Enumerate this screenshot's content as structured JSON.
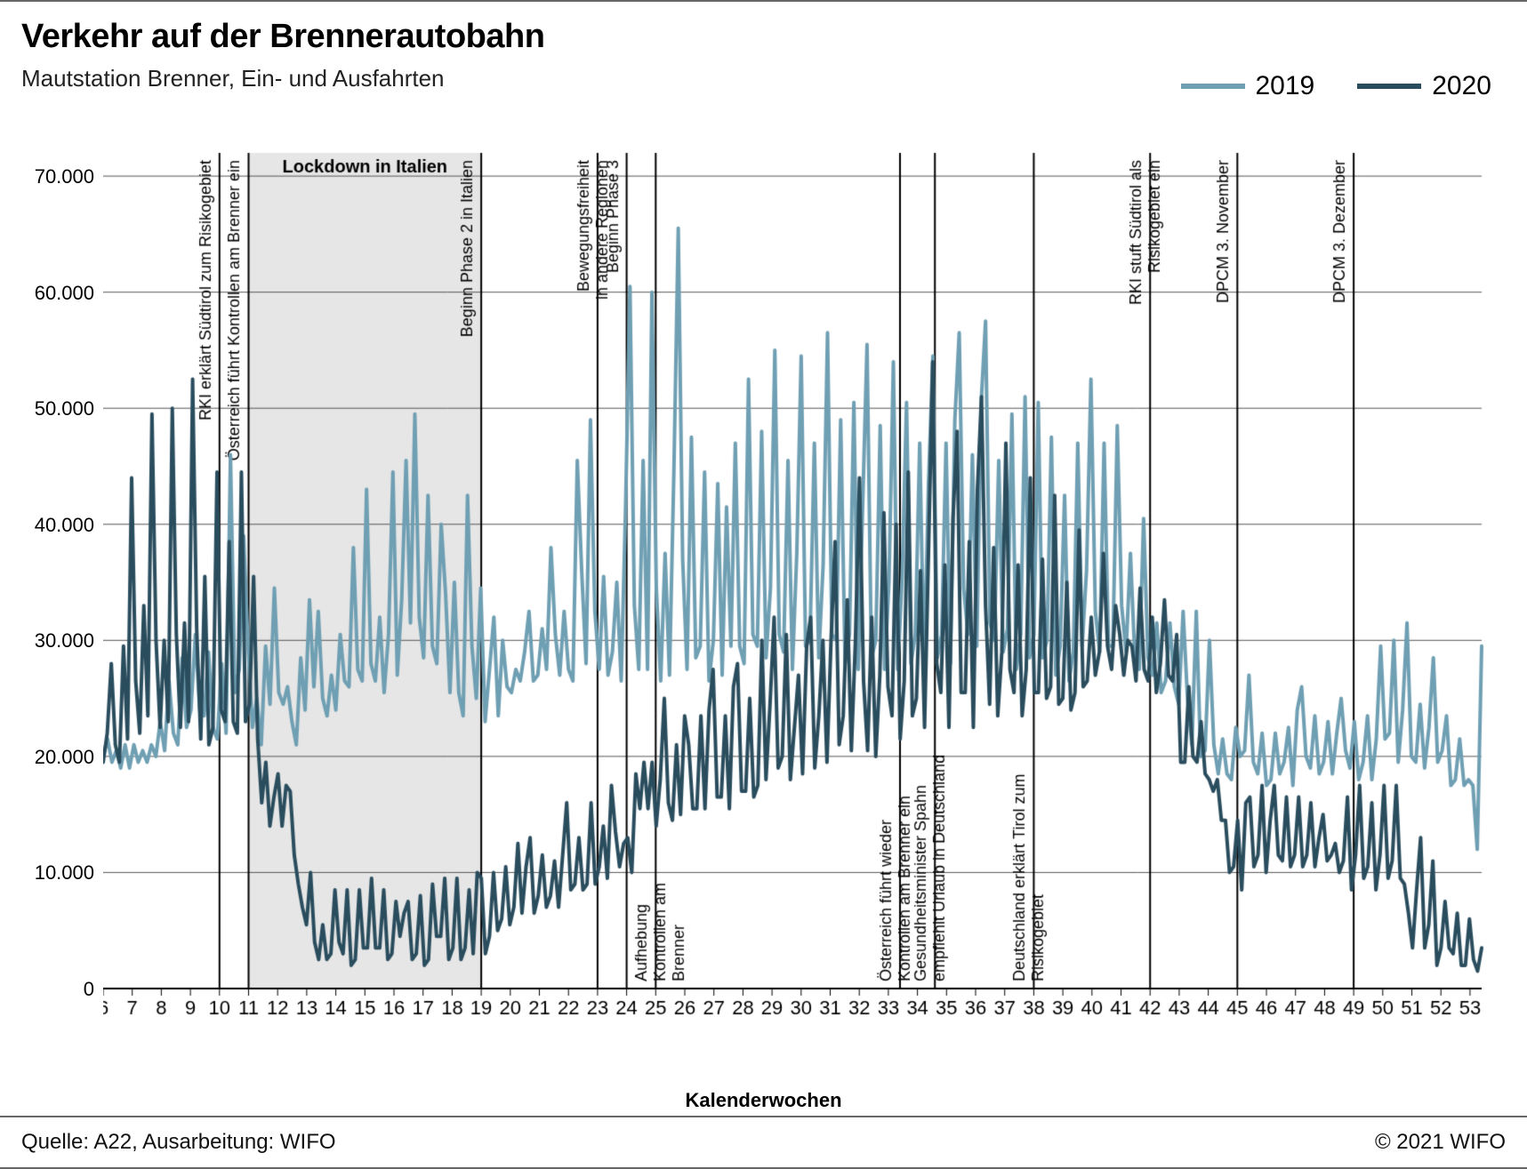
{
  "title": "Verkehr auf der Brennerautobahn",
  "subtitle": "Mautstation Brenner, Ein- und Ausfahrten",
  "legend": {
    "s2019": "2019",
    "s2020": "2020"
  },
  "footer_left": "Quelle: A22, Ausarbeitung: WIFO",
  "footer_right": "© 2021 WIFO",
  "x_axis_title": "Kalenderwochen",
  "chart": {
    "type": "line",
    "background_color": "#ffffff",
    "grid_color": "#555555",
    "grid_width": 1,
    "axis_color": "#000000",
    "shade_color": "#e6e6e6",
    "label_fontsize": 22,
    "tick_fontsize": 22,
    "annotation_fontsize": 18,
    "line_width": 4,
    "series_colors": {
      "s2019": "#6f9fb3",
      "s2020": "#2a4d5e"
    },
    "y": {
      "min": 0,
      "max": 72000,
      "ticks": [
        0,
        10000,
        20000,
        30000,
        40000,
        50000,
        60000,
        70000
      ],
      "tick_labels": [
        "0",
        "10.000",
        "20.000",
        "30.000",
        "40.000",
        "50.000",
        "60.000",
        "70.000"
      ]
    },
    "x": {
      "min": 6,
      "max": 53.4,
      "tick_start": 6,
      "tick_end": 53
    },
    "shade_band": {
      "from": 11,
      "to": 19,
      "label": "Lockdown in Italien"
    },
    "annotations_top": [
      {
        "week": 10,
        "lines": [
          "RKI erklärt Südtirol zum Risikogebiet"
        ]
      },
      {
        "week": 11,
        "lines": [
          "Österreich führt Kontrollen am Brenner ein"
        ]
      },
      {
        "week": 19,
        "lines": [
          "Beginn Phase 2 in Italien"
        ]
      },
      {
        "week": 23,
        "lines": [
          "Bewegungsfreiheit",
          "in andere Regionen"
        ]
      },
      {
        "week": 24,
        "lines": [
          "Beginn Phase 3"
        ]
      },
      {
        "week": 42,
        "lines": [
          "RKI stuft Südtirol als",
          "Risikogebiet ein"
        ]
      },
      {
        "week": 45,
        "lines": [
          "DPCM 3. November"
        ]
      },
      {
        "week": 49,
        "lines": [
          "DPCM 3. Dezember"
        ]
      }
    ],
    "annotations_bottom": [
      {
        "week": 25,
        "lines": [
          "Aufhebung",
          "Kontrollen am",
          "Brenner"
        ]
      },
      {
        "week": 33.4,
        "lines": [
          "Österreich führt wieder",
          "Kontrollen am Brenner ein"
        ]
      },
      {
        "week": 34.6,
        "lines": [
          "Gesundheitsminister Spahn",
          "empfiehlt Urlaub in Deutschland"
        ]
      },
      {
        "week": 38,
        "lines": [
          "Deutschland erklärt Tirol zum",
          "Risikogebiet"
        ]
      }
    ],
    "series_2019": [
      20000,
      21500,
      19500,
      20500,
      19000,
      21000,
      19000,
      21000,
      19500,
      20500,
      19500,
      21000,
      20000,
      23000,
      20500,
      26500,
      22000,
      21000,
      28500,
      22500,
      24000,
      30500,
      24000,
      23500,
      29000,
      22500,
      21500,
      28000,
      22000,
      46000,
      25500,
      27500,
      39000,
      29500,
      22500,
      25000,
      21000,
      29500,
      24500,
      34500,
      25500,
      24500,
      26000,
      23000,
      21000,
      28500,
      24000,
      33500,
      26000,
      32500,
      25000,
      23500,
      27000,
      24000,
      30500,
      26500,
      26000,
      38000,
      27500,
      26500,
      43000,
      28000,
      26500,
      32000,
      25500,
      30500,
      44500,
      27000,
      33500,
      45500,
      31500,
      49500,
      32000,
      28500,
      42500,
      29500,
      28000,
      40000,
      34000,
      25500,
      35000,
      25500,
      23500,
      42500,
      29500,
      25000,
      34500,
      23000,
      27500,
      32000,
      23500,
      30000,
      26000,
      25500,
      27500,
      26500,
      29000,
      32500,
      26500,
      27000,
      31000,
      27500,
      38000,
      30500,
      27000,
      32500,
      27500,
      26500,
      45500,
      36000,
      28000,
      49000,
      32500,
      27500,
      35500,
      27000,
      29000,
      35000,
      26500,
      41500,
      60500,
      33000,
      27500,
      45500,
      27500,
      60000,
      34500,
      26500,
      37500,
      27000,
      44500,
      65500,
      37000,
      27500,
      47500,
      28500,
      29500,
      44500,
      26500,
      30000,
      43500,
      27000,
      41500,
      29500,
      47000,
      29500,
      28000,
      52500,
      30500,
      29500,
      48000,
      28500,
      34500,
      55000,
      30500,
      29000,
      45500,
      27500,
      37500,
      54500,
      29500,
      30000,
      47000,
      28500,
      36500,
      56500,
      30500,
      30000,
      49000,
      28000,
      30500,
      50500,
      27500,
      41500,
      55500,
      28500,
      30000,
      48500,
      27500,
      35000,
      54000,
      27500,
      35500,
      50500,
      28000,
      30500,
      47000,
      27500,
      43500,
      54500,
      28500,
      30500,
      47000,
      28000,
      49000,
      56500,
      34500,
      30500,
      46000,
      29500,
      50500,
      57500,
      31500,
      30000,
      45500,
      29000,
      31000,
      49500,
      27500,
      30500,
      51000,
      28500,
      30500,
      50500,
      28500,
      30000,
      47500,
      27000,
      29500,
      42500,
      26500,
      29000,
      47000,
      29500,
      36000,
      52500,
      32500,
      29000,
      47000,
      29500,
      29500,
      48500,
      33000,
      29000,
      37500,
      28500,
      27500,
      40500,
      28500,
      27000,
      31500,
      25500,
      26500,
      31500,
      26000,
      24500,
      32500,
      25000,
      21000,
      32500,
      20000,
      20500,
      30000,
      21000,
      18500,
      21500,
      18500,
      18000,
      22500,
      20000,
      20500,
      27000,
      19500,
      18500,
      22000,
      17500,
      18000,
      22000,
      18500,
      19500,
      22500,
      17500,
      24000,
      26000,
      20000,
      19000,
      23500,
      18500,
      19500,
      23000,
      18500,
      22000,
      25000,
      20500,
      19000,
      23000,
      18000,
      19500,
      23500,
      18000,
      21500,
      29500,
      21500,
      22000,
      30000,
      19500,
      24000,
      31500,
      20000,
      19500,
      24500,
      19000,
      22500,
      28500,
      19500,
      20500,
      23500,
      17500,
      18000,
      21500,
      17500,
      18000,
      17500,
      12000,
      29500
    ],
    "series_2020": [
      19500,
      22000,
      28000,
      21000,
      19500,
      29500,
      21500,
      44000,
      26500,
      22000,
      33000,
      23500,
      49500,
      30000,
      22500,
      30000,
      23000,
      50000,
      30500,
      22500,
      31500,
      23000,
      52500,
      31000,
      21500,
      35500,
      21000,
      22500,
      44500,
      24000,
      23000,
      38500,
      23000,
      22000,
      44500,
      23000,
      24500,
      35500,
      21500,
      16000,
      19500,
      14000,
      16500,
      18500,
      14000,
      17500,
      17000,
      11500,
      9000,
      7000,
      5500,
      10000,
      4000,
      2500,
      5500,
      2500,
      3000,
      8500,
      4000,
      3000,
      8500,
      2000,
      2500,
      8500,
      3500,
      3500,
      9500,
      3500,
      3500,
      8500,
      2500,
      3000,
      7500,
      4500,
      6500,
      7500,
      2500,
      3000,
      8000,
      2000,
      2500,
      9000,
      4500,
      4500,
      9500,
      2500,
      3500,
      9500,
      2500,
      3500,
      8500,
      3000,
      10000,
      9500,
      3000,
      4500,
      10000,
      5000,
      6000,
      10500,
      5500,
      7000,
      12500,
      6500,
      10500,
      13000,
      6500,
      8000,
      11500,
      7000,
      8000,
      11000,
      7000,
      11500,
      16000,
      8500,
      9000,
      13000,
      8500,
      9000,
      16000,
      9000,
      10500,
      14000,
      9500,
      17500,
      13500,
      10500,
      12500,
      13000,
      10000,
      18500,
      15500,
      19500,
      15500,
      19500,
      14000,
      18000,
      25000,
      16000,
      14500,
      21000,
      15000,
      23500,
      21000,
      15500,
      15500,
      23500,
      15500,
      24000,
      27500,
      16500,
      16500,
      23500,
      15500,
      26000,
      28000,
      17000,
      17000,
      25000,
      16500,
      17500,
      30000,
      18000,
      24500,
      32000,
      19000,
      20000,
      30500,
      18000,
      22500,
      27000,
      18500,
      29500,
      32000,
      19000,
      23500,
      30000,
      19500,
      30000,
      38500,
      21000,
      23500,
      33500,
      20500,
      30000,
      44000,
      26500,
      20500,
      32000,
      20000,
      27000,
      41000,
      26000,
      23500,
      40000,
      21500,
      26500,
      44500,
      23500,
      25000,
      36000,
      22500,
      38000,
      54000,
      28000,
      25500,
      36500,
      22500,
      40500,
      48000,
      25500,
      25500,
      38500,
      22500,
      43000,
      51000,
      33000,
      24500,
      38000,
      23500,
      29000,
      47000,
      27500,
      25500,
      36500,
      23500,
      27500,
      44000,
      25500,
      25500,
      37000,
      25000,
      26000,
      42500,
      24500,
      25000,
      35000,
      24000,
      25500,
      39500,
      26000,
      26500,
      32000,
      27000,
      29000,
      37500,
      29500,
      27500,
      33000,
      30500,
      27000,
      30000,
      29500,
      26500,
      34500,
      27500,
      26500,
      32000,
      25500,
      28000,
      33500,
      27000,
      26500,
      30500,
      19500,
      19500,
      26000,
      20000,
      19500,
      23000,
      18500,
      18000,
      17000,
      18000,
      14500,
      14500,
      10000,
      10500,
      14500,
      8500,
      16000,
      16500,
      10500,
      11500,
      17500,
      10000,
      14500,
      17500,
      11500,
      11000,
      16500,
      10500,
      11500,
      16500,
      10500,
      11500,
      16000,
      10500,
      13000,
      15000,
      11000,
      11500,
      12500,
      10000,
      11000,
      16500,
      8500,
      11500,
      17500,
      9500,
      10500,
      16000,
      8500,
      11500,
      17500,
      9500,
      11000,
      17500,
      9500,
      9000,
      6500,
      3500,
      8500,
      13000,
      3500,
      5500,
      11000,
      2000,
      3500,
      7500,
      3500,
      3000,
      6500,
      2000,
      2000,
      6000,
      2500,
      1500,
      3500
    ]
  }
}
